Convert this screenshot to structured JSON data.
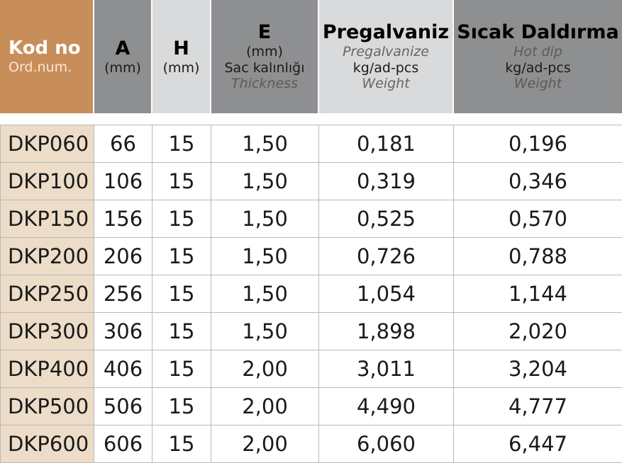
{
  "header": {
    "kod": {
      "title": "Kod no",
      "sub": "Ord.num."
    },
    "a": {
      "title": "A",
      "unit": "(mm)"
    },
    "h": {
      "title": "H",
      "unit": "(mm)"
    },
    "e": {
      "title": "E",
      "unit": "(mm)",
      "tr": "Sac kalınlığı",
      "en": "Thickness"
    },
    "pregalvaniz": {
      "title": "Pregalvaniz",
      "en": "Pregalvanize",
      "unit": "kg/ad-pcs",
      "weight": "Weight"
    },
    "sicak": {
      "title": "Sıcak Daldırma",
      "en": "Hot dip",
      "unit": "kg/ad-pcs",
      "weight": "Weight"
    }
  },
  "rows": [
    [
      "DKP060",
      "66",
      "15",
      "1,50",
      "0,181",
      "0,196"
    ],
    [
      "DKP100",
      "106",
      "15",
      "1,50",
      "0,319",
      "0,346"
    ],
    [
      "DKP150",
      "156",
      "15",
      "1,50",
      "0,525",
      "0,570"
    ],
    [
      "DKP200",
      "206",
      "15",
      "1,50",
      "0,726",
      "0,788"
    ],
    [
      "DKP250",
      "256",
      "15",
      "1,50",
      "1,054",
      "1,144"
    ],
    [
      "DKP300",
      "306",
      "15",
      "1,50",
      "1,898",
      "2,020"
    ],
    [
      "DKP400",
      "406",
      "15",
      "2,00",
      "3,011",
      "3,204"
    ],
    [
      "DKP500",
      "506",
      "15",
      "2,00",
      "4,490",
      "4,777"
    ],
    [
      "DKP600",
      "606",
      "15",
      "2,00",
      "6,060",
      "6,447"
    ]
  ]
}
